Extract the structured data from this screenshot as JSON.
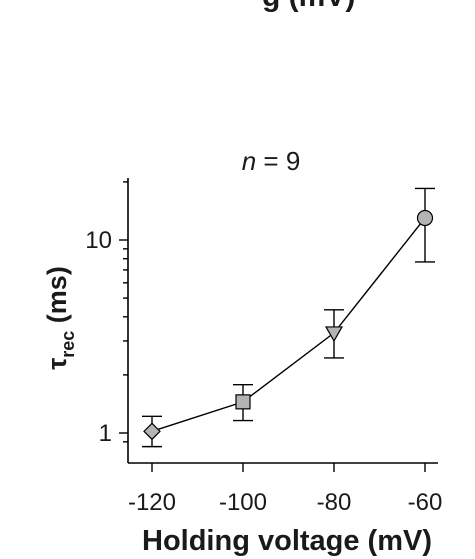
{
  "chart_data": {
    "type": "scatter",
    "top_fragment": "g (mV)",
    "annotation_n": "n",
    "annotation_rest": " = 9",
    "xlabel": "Holding voltage (mV)",
    "ylabel_symbol": "τ",
    "ylabel_sub": "rec",
    "ylabel_unit": " (ms)",
    "xlim": [
      -125,
      -55
    ],
    "ylim": [
      0.85,
      22
    ],
    "yscale": "log",
    "x_ticks": [
      -120,
      -100,
      -80,
      -60
    ],
    "x_tick_labels": [
      "-120",
      "-100",
      "-80",
      "-60"
    ],
    "y_ticks": [
      1,
      10
    ],
    "y_tick_labels": [
      "1",
      "10"
    ],
    "grid": false,
    "line_color": "#000000",
    "marker_fill": "#b4b4b4",
    "series": [
      {
        "x": [
          -120,
          -100,
          -80,
          -60
        ],
        "y": [
          1.02,
          1.45,
          3.3,
          13
        ],
        "y_err_low": [
          0.85,
          1.16,
          2.45,
          7.7
        ],
        "y_err_high": [
          1.22,
          1.78,
          4.35,
          18.5
        ],
        "markers": [
          "diamond",
          "square",
          "triangle-down",
          "circle"
        ]
      }
    ]
  }
}
